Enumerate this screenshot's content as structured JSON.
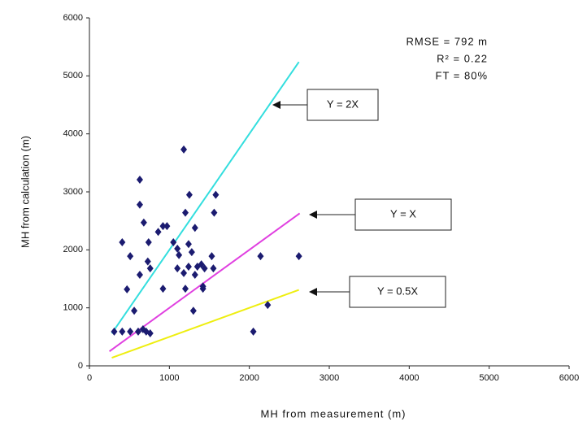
{
  "chart_data": {
    "type": "scatter",
    "xlabel": "MH from measurement (m)",
    "ylabel": "MH from calculation (m)",
    "xlim": [
      0,
      6000
    ],
    "ylim": [
      0,
      6000
    ],
    "xticks": [
      0,
      1000,
      2000,
      3000,
      4000,
      5000,
      6000
    ],
    "yticks": [
      0,
      1000,
      2000,
      3000,
      4000,
      5000,
      6000
    ],
    "stats": [
      "RMSE = 792 m",
      "R² = 0.22",
      "FT = 80%"
    ],
    "points": {
      "color": "#1b1b70",
      "x": [
        630,
        630,
        680,
        410,
        510,
        740,
        760,
        730,
        860,
        920,
        970,
        1050,
        1100,
        1120,
        1180,
        1200,
        1250,
        1320,
        1240,
        1280,
        1350,
        1400,
        1100,
        1180,
        1240,
        1320,
        1440,
        1580,
        1560,
        1530,
        1550,
        1420,
        1200,
        920,
        470,
        560,
        1300,
        310,
        410,
        510,
        610,
        710,
        760,
        670,
        630,
        2140,
        2620,
        2230,
        2050,
        1420
      ],
      "values": [
        3210,
        2780,
        2470,
        2130,
        1890,
        2130,
        1680,
        1800,
        2310,
        2410,
        2410,
        2130,
        2020,
        1910,
        3730,
        2640,
        2950,
        2380,
        2100,
        1960,
        1710,
        1750,
        1680,
        1600,
        1710,
        1570,
        1680,
        2950,
        2640,
        1890,
        1680,
        1330,
        1330,
        1330,
        1320,
        950,
        950,
        590,
        590,
        590,
        590,
        590,
        560,
        630,
        1570,
        1890,
        1890,
        1050,
        590,
        1370
      ]
    },
    "lines": [
      {
        "label": "Y = 2X",
        "color": "#33dede",
        "x": [
          280,
          2620
        ],
        "values": [
          560,
          5240
        ]
      },
      {
        "label": "Y = X",
        "color": "#e040e0",
        "x": [
          250,
          2630
        ],
        "values": [
          250,
          2630
        ]
      },
      {
        "label": "Y = 0.5X",
        "color": "#eeee10",
        "x": [
          280,
          2620
        ],
        "values": [
          140,
          1310
        ]
      }
    ]
  }
}
